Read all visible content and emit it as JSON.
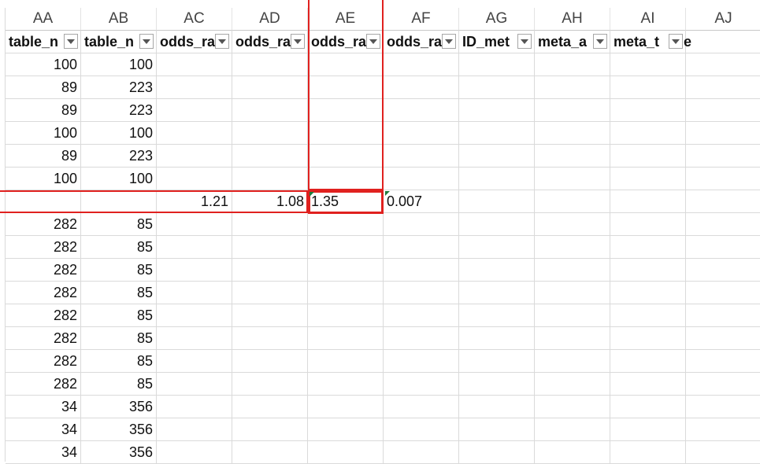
{
  "columns": [
    "AA",
    "AB",
    "AC",
    "AD",
    "AE",
    "AF",
    "AG",
    "AH",
    "AI",
    "AJ"
  ],
  "header_row": [
    {
      "label": "table_n"
    },
    {
      "label": "table_n"
    },
    {
      "label": "odds_ra"
    },
    {
      "label": "odds_ra"
    },
    {
      "label": "odds_ra"
    },
    {
      "label": "odds_ra"
    },
    {
      "label": "ID_met"
    },
    {
      "label": "meta_a"
    },
    {
      "label": "meta_t",
      "overflow": "e"
    }
  ],
  "rows": [
    [
      "100",
      "100",
      "",
      "",
      "",
      ""
    ],
    [
      "89",
      "223",
      "",
      "",
      "",
      ""
    ],
    [
      "89",
      "223",
      "",
      "",
      "",
      ""
    ],
    [
      "100",
      "100",
      "",
      "",
      "",
      ""
    ],
    [
      "89",
      "223",
      "",
      "",
      "",
      ""
    ],
    [
      "100",
      "100",
      "",
      "",
      "",
      ""
    ],
    [
      "",
      "",
      "1.21",
      "1.08",
      "1.35",
      "0.007"
    ],
    [
      "282",
      "85",
      "",
      "",
      "",
      ""
    ],
    [
      "282",
      "85",
      "",
      "",
      "",
      ""
    ],
    [
      "282",
      "85",
      "",
      "",
      "",
      ""
    ],
    [
      "282",
      "85",
      "",
      "",
      "",
      ""
    ],
    [
      "282",
      "85",
      "",
      "",
      "",
      ""
    ],
    [
      "282",
      "85",
      "",
      "",
      "",
      ""
    ],
    [
      "282",
      "85",
      "",
      "",
      "",
      ""
    ],
    [
      "282",
      "85",
      "",
      "",
      "",
      ""
    ],
    [
      "34",
      "356",
      "",
      "",
      "",
      ""
    ],
    [
      "34",
      "356",
      "",
      "",
      "",
      ""
    ],
    [
      "34",
      "356",
      "",
      "",
      "",
      ""
    ]
  ],
  "colors": {
    "highlight": "#e0211f",
    "error_triangle": "#1e7a3c"
  },
  "icons": {
    "filter": "filter-dropdown-icon"
  }
}
